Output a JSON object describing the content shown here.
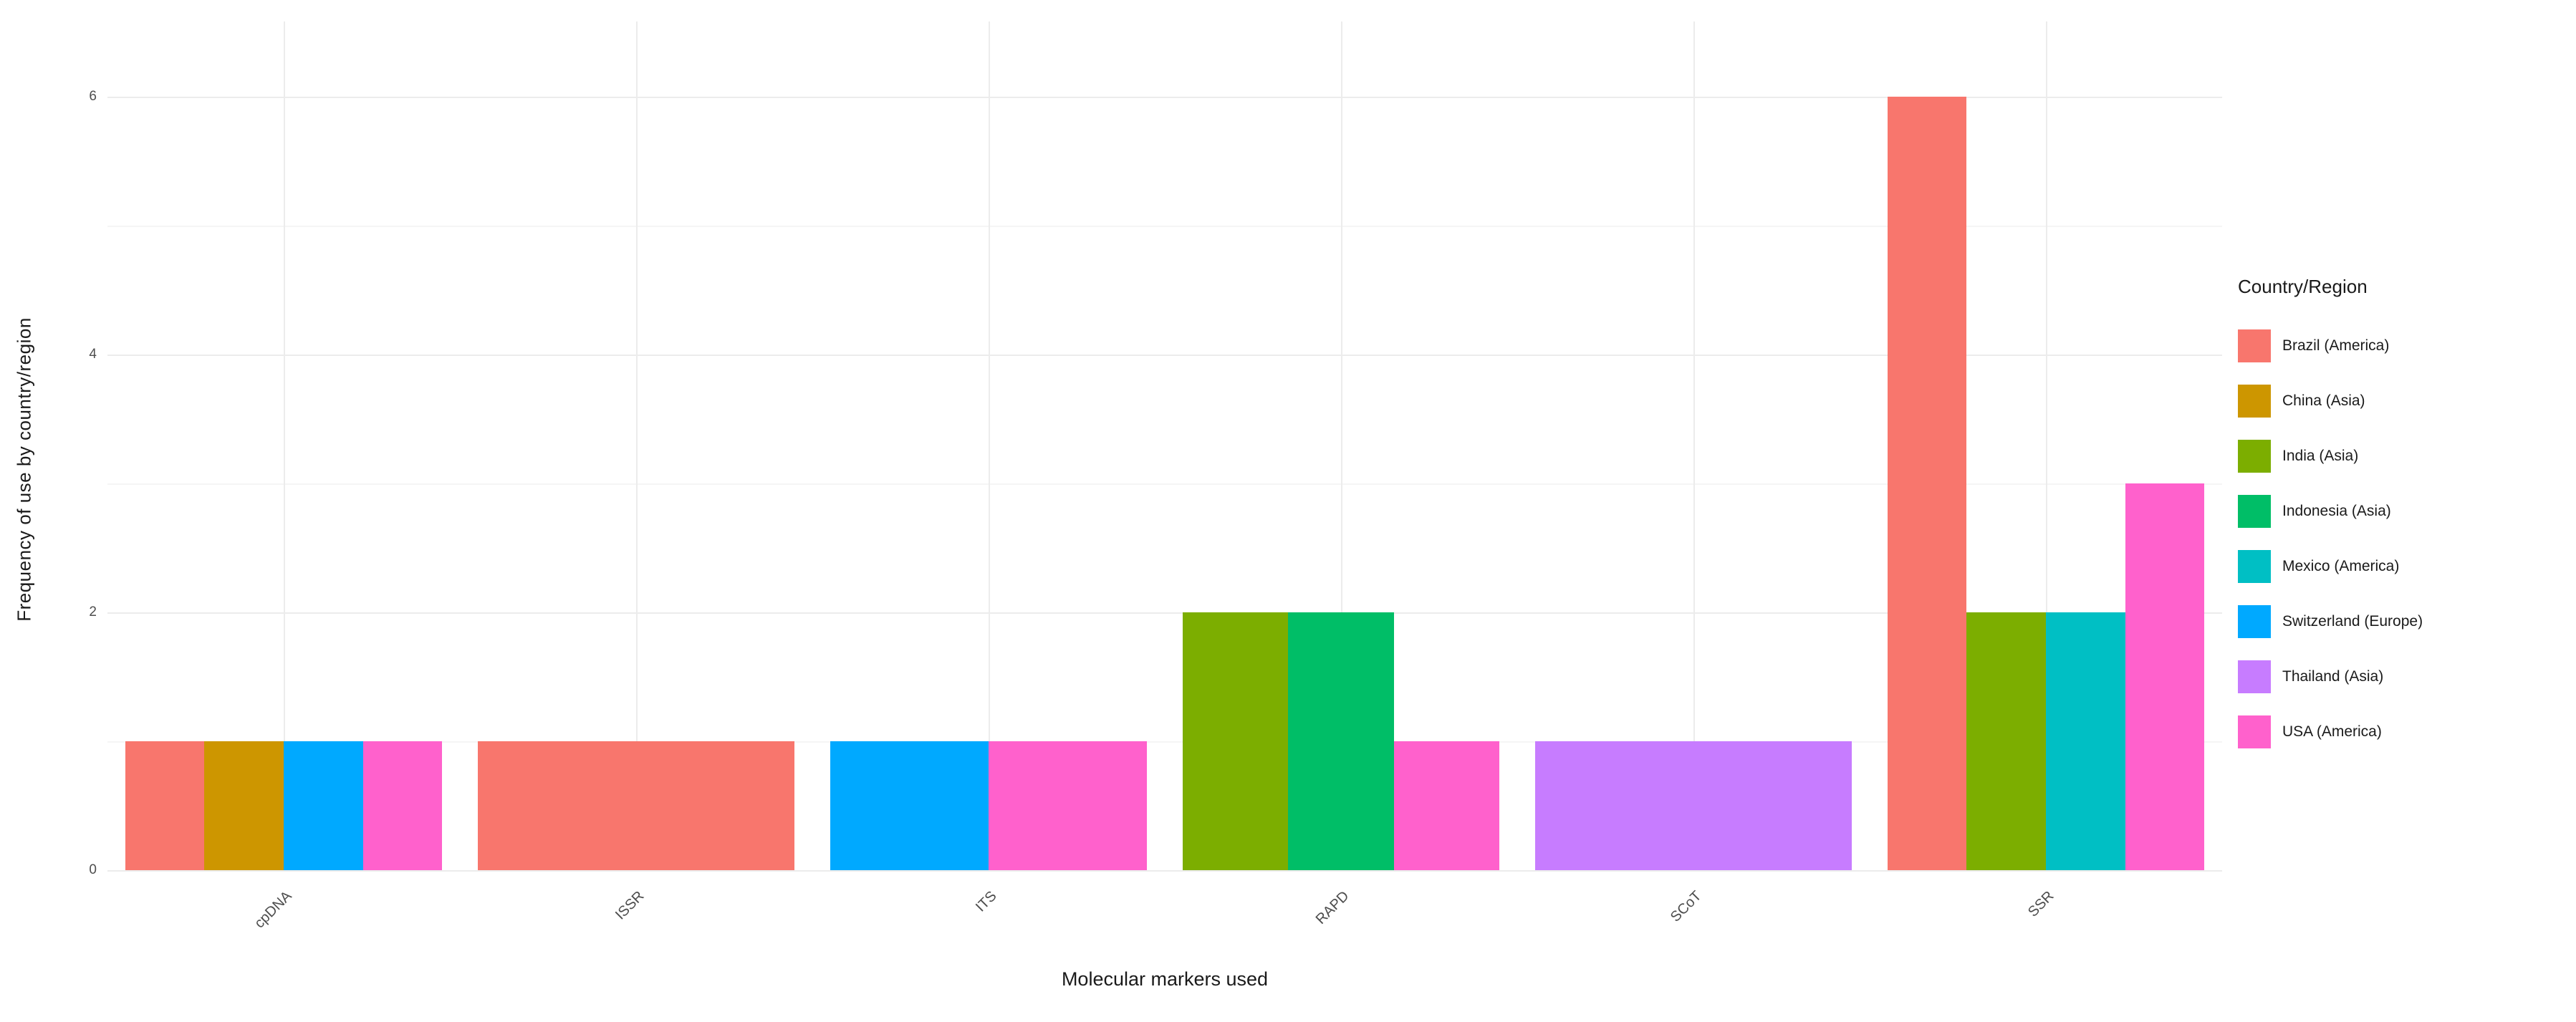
{
  "chart_data": {
    "type": "bar",
    "title": "",
    "xlabel": "Molecular markers used",
    "ylabel": "Frequency of use by country/region",
    "legend_title": "Country/Region",
    "legend_position": "right",
    "grid": true,
    "categories": [
      "cpDNA",
      "ISSR",
      "ITS",
      "RAPD",
      "SCoT",
      "SSR"
    ],
    "series": [
      {
        "name": "Brazil (America)",
        "color": "#F8766D",
        "values": [
          1,
          1,
          0,
          0,
          0,
          6
        ]
      },
      {
        "name": "China (Asia)",
        "color": "#CD9600",
        "values": [
          1,
          0,
          0,
          0,
          0,
          0
        ]
      },
      {
        "name": "India (Asia)",
        "color": "#7CAE00",
        "values": [
          0,
          0,
          0,
          2,
          0,
          2
        ]
      },
      {
        "name": "Indonesia (Asia)",
        "color": "#00BE67",
        "values": [
          0,
          0,
          0,
          2,
          0,
          0
        ]
      },
      {
        "name": "Mexico (America)",
        "color": "#00BFC4",
        "values": [
          0,
          0,
          0,
          0,
          0,
          2
        ]
      },
      {
        "name": "Switzerland (Europe)",
        "color": "#00A9FF",
        "values": [
          1,
          0,
          1,
          0,
          0,
          0
        ]
      },
      {
        "name": "Thailand (Asia)",
        "color": "#C77CFF",
        "values": [
          0,
          0,
          0,
          0,
          1,
          0
        ]
      },
      {
        "name": "USA (America)",
        "color": "#FF61CC",
        "values": [
          1,
          0,
          1,
          1,
          0,
          3
        ]
      }
    ],
    "ylim": [
      0,
      6
    ],
    "yticks": [
      "0",
      "2",
      "4",
      "6"
    ],
    "minor_yticks": [
      1,
      3,
      5
    ],
    "bar_group_fraction": 0.9
  }
}
